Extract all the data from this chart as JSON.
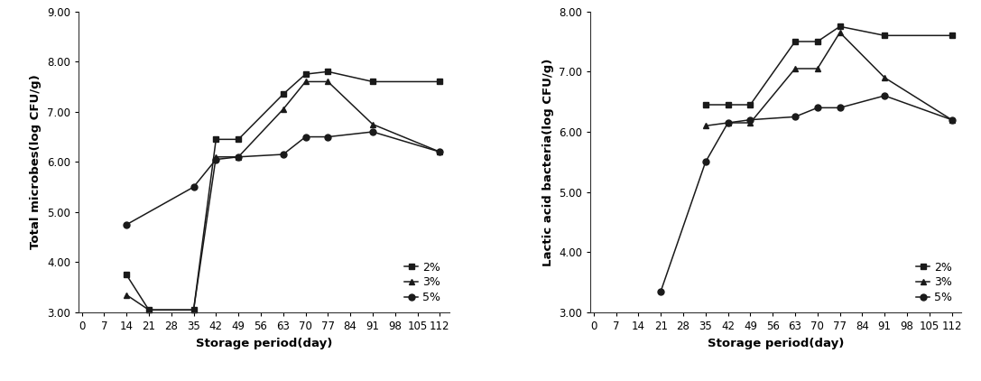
{
  "left": {
    "ylabel": "Total microbes(log CFU/g)",
    "xlabel": "Storage period(day)",
    "ylim": [
      3.0,
      9.0
    ],
    "yticks": [
      3.0,
      4.0,
      5.0,
      6.0,
      7.0,
      8.0,
      9.0
    ],
    "ytick_labels": [
      "3.00",
      "4.00",
      "5.00",
      "6.00",
      "7.00",
      "8.00",
      "9.00"
    ],
    "xticks": [
      0,
      7,
      14,
      21,
      28,
      35,
      42,
      49,
      56,
      63,
      70,
      77,
      84,
      91,
      98,
      105,
      112
    ],
    "series": {
      "2%": {
        "x": [
          14,
          21,
          35,
          42,
          49,
          63,
          70,
          77,
          91,
          112
        ],
        "y": [
          3.75,
          3.05,
          3.05,
          6.45,
          6.45,
          7.35,
          7.75,
          7.8,
          7.6,
          7.6
        ],
        "marker": "s"
      },
      "3%": {
        "x": [
          14,
          21,
          35,
          42,
          49,
          63,
          70,
          77,
          91,
          112
        ],
        "y": [
          3.35,
          3.05,
          3.05,
          6.1,
          6.1,
          7.05,
          7.6,
          7.6,
          6.75,
          6.2
        ],
        "marker": "^"
      },
      "5%": {
        "x": [
          14,
          35,
          42,
          49,
          63,
          70,
          77,
          91,
          112
        ],
        "y": [
          4.75,
          5.5,
          6.05,
          6.1,
          6.15,
          6.5,
          6.5,
          6.6,
          6.2
        ],
        "marker": "o"
      }
    }
  },
  "right": {
    "ylabel": "Lactic acid bacteria(log CFU/g)",
    "xlabel": "Storage period(day)",
    "ylim": [
      3.0,
      8.0
    ],
    "yticks": [
      3.0,
      4.0,
      5.0,
      6.0,
      7.0,
      8.0
    ],
    "ytick_labels": [
      "3.00",
      "4.00",
      "5.00",
      "6.00",
      "7.00",
      "8.00"
    ],
    "xticks": [
      0,
      7,
      14,
      21,
      28,
      35,
      42,
      49,
      56,
      63,
      70,
      77,
      84,
      91,
      98,
      105,
      112
    ],
    "series": {
      "2%": {
        "x": [
          35,
          42,
          49,
          63,
          70,
          77,
          91,
          112
        ],
        "y": [
          6.45,
          6.45,
          6.45,
          7.5,
          7.5,
          7.75,
          7.6,
          7.6
        ],
        "marker": "s"
      },
      "3%": {
        "x": [
          35,
          42,
          49,
          63,
          70,
          77,
          91,
          112
        ],
        "y": [
          6.1,
          6.15,
          6.15,
          7.05,
          7.05,
          7.65,
          6.9,
          6.2
        ],
        "marker": "^"
      },
      "5%": {
        "x": [
          21,
          35,
          42,
          49,
          63,
          70,
          77,
          91,
          112
        ],
        "y": [
          3.35,
          5.5,
          6.15,
          6.2,
          6.25,
          6.4,
          6.4,
          6.6,
          6.2
        ],
        "marker": "o"
      }
    }
  },
  "line_color": "#1a1a1a",
  "marker_size": 5,
  "line_width": 1.1,
  "font_size": 9,
  "tick_font_size": 8.5,
  "label_font_size": 9.5,
  "bg_color": "#ffffff"
}
